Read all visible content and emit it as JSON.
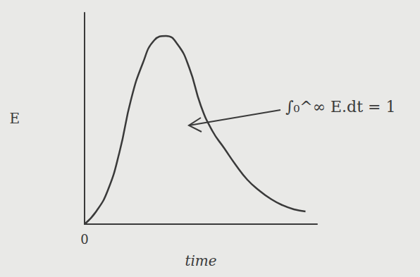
{
  "chart_data": {
    "type": "line",
    "x_label": "time",
    "y_label": "E",
    "annotation": "∫₀^∞ E.dt = 1",
    "x": [
      0,
      0.5,
      1,
      1.5,
      2,
      2.5,
      3,
      3.5,
      4,
      4.5,
      5,
      5.5,
      6,
      6.5,
      7,
      7.5,
      8,
      8.5,
      9,
      9.5
    ],
    "values": [
      0,
      0.6,
      1.6,
      3.4,
      5.9,
      7.6,
      8.7,
      8.9,
      8.5,
      7.4,
      5.6,
      4.4,
      3.6,
      2.8,
      2.1,
      1.6,
      1.2,
      0.9,
      0.7,
      0.6
    ],
    "xlim": [
      0,
      10
    ],
    "ylim": [
      0,
      10
    ],
    "xticks": [
      0
    ],
    "tick_labels": "x",
    "grid": false,
    "color": "#3a3a3a",
    "marker": "none",
    "line_style": "solid"
  }
}
